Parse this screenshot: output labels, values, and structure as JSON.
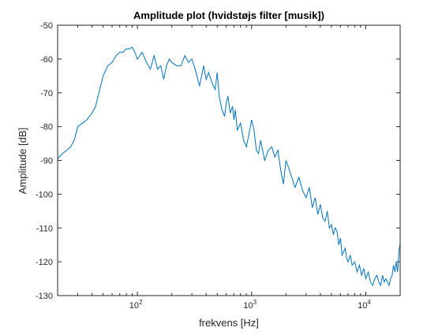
{
  "chart_data": {
    "type": "line",
    "title": "Amplitude plot (hvidstøjs filter [musik])",
    "xlabel": "frekvens [Hz]",
    "ylabel": "Amplitude [dB]",
    "x_scale": "log",
    "xlim": [
      20,
      20000
    ],
    "ylim": [
      -130,
      -50
    ],
    "x_ticks": [
      100,
      1000,
      10000
    ],
    "x_tick_labels": [
      {
        "base": "10",
        "exp": "2"
      },
      {
        "base": "10",
        "exp": "3"
      },
      {
        "base": "10",
        "exp": "4"
      }
    ],
    "y_ticks": [
      -50,
      -60,
      -70,
      -80,
      -90,
      -100,
      -110,
      -120,
      -130
    ],
    "y_tick_labels": [
      "-50",
      "-60",
      "-70",
      "-80",
      "-90",
      "-100",
      "-110",
      "-120",
      "-130"
    ],
    "grid": false,
    "box": true,
    "line_color": "#0072BD",
    "axis_color": "#262626",
    "series": [
      {
        "x": [
          20,
          22,
          24,
          26,
          28,
          30,
          33,
          36,
          40,
          43,
          46,
          50,
          55,
          60,
          65,
          70,
          75,
          80,
          85,
          90,
          95,
          100,
          110,
          120,
          130,
          140,
          150,
          160,
          170,
          180,
          190,
          200,
          220,
          240,
          260,
          280,
          300,
          320,
          350,
          380,
          400,
          420,
          450,
          480,
          500,
          520,
          550,
          580,
          600,
          620,
          650,
          680,
          700,
          720,
          750,
          800,
          850,
          900,
          950,
          1000,
          1050,
          1100,
          1150,
          1200,
          1300,
          1400,
          1500,
          1600,
          1700,
          1800,
          1900,
          2000,
          2100,
          2200,
          2400,
          2600,
          2800,
          3000,
          3200,
          3400,
          3600,
          3800,
          4000,
          4200,
          4400,
          4600,
          4800,
          5000,
          5200,
          5400,
          5600,
          5800,
          6000,
          6200,
          6400,
          6600,
          6800,
          7000,
          7300,
          7600,
          8000,
          8400,
          8800,
          9200,
          9600,
          10000,
          10500,
          11000,
          11500,
          12000,
          12500,
          13000,
          13500,
          14000,
          14500,
          15000,
          15500,
          16000,
          16500,
          17000,
          17500,
          18000,
          18500,
          19000,
          19500,
          20000
        ],
        "y": [
          -89.5,
          -88,
          -87,
          -86,
          -84,
          -80,
          -79,
          -78,
          -76,
          -74,
          -70,
          -65,
          -62,
          -61,
          -59,
          -58,
          -58,
          -57,
          -57,
          -56.5,
          -58,
          -60,
          -58,
          -61,
          -63,
          -59,
          -63,
          -62,
          -66,
          -62,
          -60,
          -61,
          -62,
          -62,
          -59,
          -61,
          -60,
          -63,
          -68,
          -62,
          -66,
          -64,
          -67,
          -69,
          -64,
          -71,
          -75,
          -77,
          -73,
          -71,
          -76,
          -74,
          -78,
          -75,
          -81,
          -79,
          -84,
          -86,
          -82,
          -78,
          -81,
          -87,
          -88,
          -84,
          -90,
          -87,
          -86,
          -89,
          -87,
          -93,
          -97,
          -90,
          -92,
          -94,
          -98,
          -95,
          -99,
          -101,
          -98,
          -104,
          -101,
          -106,
          -103,
          -107,
          -108,
          -105,
          -110,
          -109,
          -112,
          -110,
          -111,
          -115,
          -113,
          -118,
          -117,
          -116,
          -119,
          -120,
          -118,
          -121,
          -120,
          -123,
          -121,
          -124,
          -122,
          -125,
          -123,
          -126,
          -127,
          -125,
          -124,
          -126,
          -127,
          -124,
          -126,
          -125,
          -126,
          -127,
          -125,
          -124,
          -121,
          -123,
          -120,
          -123,
          -117,
          -114.5
        ]
      }
    ]
  }
}
